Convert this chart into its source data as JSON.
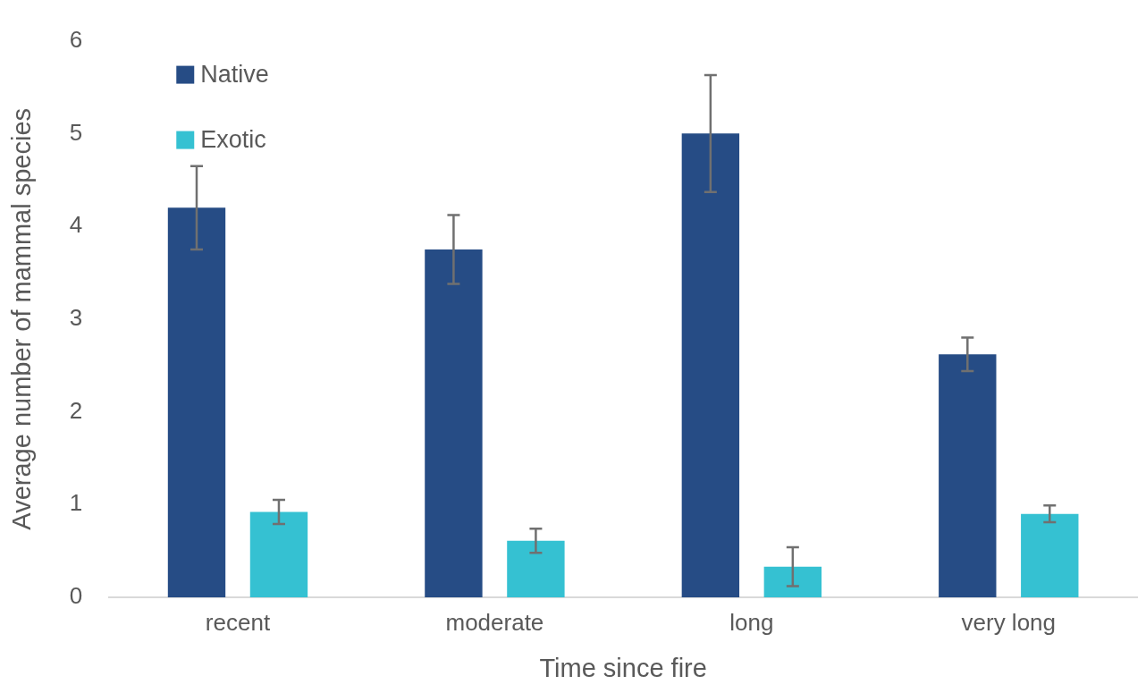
{
  "chart_data": {
    "type": "bar",
    "xlabel": "Time since fire",
    "ylabel": "Average number of mammal species",
    "categories": [
      "recent",
      "moderate",
      "long",
      "very long"
    ],
    "series": [
      {
        "name": "Native",
        "color": "#264c85",
        "values": [
          4.2,
          3.75,
          5.0,
          2.62
        ],
        "errors": [
          0.45,
          0.37,
          0.63,
          0.18
        ]
      },
      {
        "name": "Exotic",
        "color": "#35c1d2",
        "values": [
          0.92,
          0.61,
          0.33,
          0.9
        ],
        "errors": [
          0.13,
          0.13,
          0.21,
          0.09
        ]
      }
    ],
    "ylim": [
      0,
      6
    ],
    "yticks": [
      0,
      1,
      2,
      3,
      4,
      5,
      6
    ],
    "grid": false,
    "legend": "top left"
  }
}
